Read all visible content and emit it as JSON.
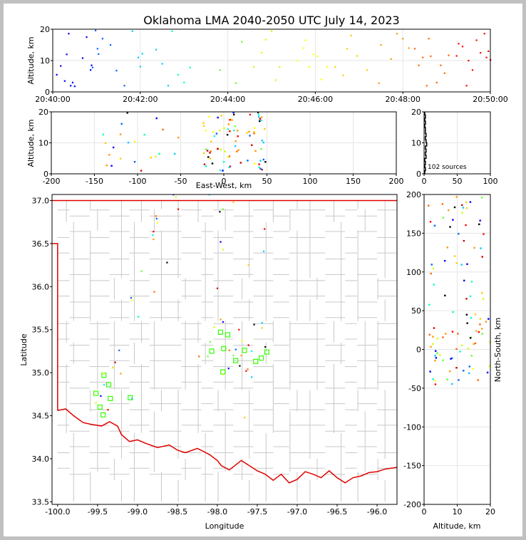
{
  "title": "Oklahoma LMA 2040-2050 UTC July 14, 2023",
  "source_count_label": "102 sources",
  "colors": {
    "grid": "#e6e6e6",
    "county": "#c8c8c8",
    "border": "#e00000",
    "station": "#33ff00"
  },
  "chart_data": [
    {
      "type": "scatter",
      "name": "time-height",
      "xlabel": "",
      "ylabel": "Altitude, km",
      "xlim": [
        "20:40:00",
        "20:50:00"
      ],
      "ylim": [
        0,
        20
      ],
      "xticks": [
        "20:40:00",
        "20:42:00",
        "20:44:00",
        "20:46:00",
        "20:48:00",
        "20:50:00"
      ],
      "yticks": [
        "0",
        "10",
        "20"
      ],
      "points_note": "t in minutes after 20:40:00, alt in km",
      "points": [
        [
          0.2,
          5.5
        ],
        [
          0.4,
          8.3
        ],
        [
          0.6,
          3.5
        ],
        [
          0.7,
          12.0
        ],
        [
          0.8,
          18.6
        ],
        [
          0.9,
          2.0
        ],
        [
          1.0,
          3.0
        ],
        [
          1.1,
          1.8
        ],
        [
          1.5,
          10.8
        ],
        [
          1.7,
          17.5
        ],
        [
          1.9,
          7.0
        ],
        [
          1.95,
          8.5
        ],
        [
          2.0,
          7.8
        ],
        [
          2.15,
          19.6
        ],
        [
          2.3,
          12.1
        ],
        [
          2.25,
          13.8
        ],
        [
          2.5,
          17.0
        ],
        [
          2.9,
          15.0
        ],
        [
          3.2,
          6.8
        ],
        [
          3.6,
          2.0
        ],
        [
          4.0,
          19.4
        ],
        [
          4.3,
          11.0
        ],
        [
          4.5,
          12.2
        ],
        [
          4.4,
          8.1
        ],
        [
          5.2,
          13.5
        ],
        [
          5.5,
          9.0
        ],
        [
          5.8,
          2.0
        ],
        [
          6.0,
          19.4
        ],
        [
          6.3,
          5.5
        ],
        [
          6.6,
          3.0
        ],
        [
          6.9,
          7.8
        ],
        [
          8.4,
          7.0
        ],
        [
          9.2,
          2.8
        ],
        [
          9.5,
          16.0
        ],
        [
          10.1,
          8.0
        ],
        [
          10.5,
          12.5
        ],
        [
          10.7,
          16.7
        ],
        [
          11.0,
          19.4
        ],
        [
          11.2,
          3.8
        ],
        [
          11.4,
          8.0
        ],
        [
          12.3,
          10.0
        ],
        [
          12.6,
          14.0
        ],
        [
          12.7,
          16.5
        ],
        [
          12.9,
          8.0
        ],
        [
          13.1,
          12.0
        ],
        [
          13.3,
          11.4
        ],
        [
          13.5,
          4.0
        ],
        [
          13.8,
          8.0
        ],
        [
          14.2,
          8.0
        ],
        [
          14.6,
          5.3
        ],
        [
          14.8,
          13.8
        ],
        [
          15.0,
          18.0
        ],
        [
          15.3,
          11.5
        ],
        [
          15.8,
          7.0
        ],
        [
          16.4,
          2.8
        ],
        [
          16.5,
          15.0
        ],
        [
          17.0,
          10.5
        ],
        [
          17.3,
          18.6
        ],
        [
          17.6,
          17.0
        ],
        [
          17.9,
          14.0
        ],
        [
          18.2,
          13.8
        ],
        [
          18.4,
          8.5
        ],
        [
          18.6,
          11.0
        ],
        [
          18.8,
          2.0
        ],
        [
          18.9,
          17.0
        ],
        [
          19.0,
          11.4
        ],
        [
          19.3,
          3.0
        ],
        [
          19.5,
          8.5
        ],
        [
          19.7,
          6.0
        ],
        [
          19.9,
          11.7
        ],
        [
          20.3,
          11.5
        ],
        [
          20.8,
          2.0
        ],
        [
          20.4,
          15.4
        ],
        [
          20.6,
          14.5
        ],
        [
          20.9,
          10.0
        ],
        [
          21.1,
          7.0
        ],
        [
          21.3,
          16.5
        ],
        [
          21.5,
          12.5
        ],
        [
          21.7,
          18.6
        ],
        [
          21.8,
          11.0
        ],
        [
          21.9,
          13.0
        ],
        [
          22.0,
          10.2
        ]
      ]
    },
    {
      "type": "scatter",
      "name": "east-west-altitude",
      "xlabel": "East-West, km",
      "ylabel": "Altitude, km",
      "xlim": [
        -200,
        200
      ],
      "ylim": [
        0,
        20
      ],
      "xticks": [
        "-200",
        "-150",
        "-100",
        "-50",
        "0",
        "50",
        "100",
        "150",
        "200"
      ],
      "yticks": [
        "0",
        "10",
        "20"
      ]
    },
    {
      "type": "histogram",
      "name": "altitude-histogram",
      "xlim": [
        0,
        100
      ],
      "ylim": [
        0,
        20
      ],
      "xticks": [
        "0",
        "50",
        "100"
      ],
      "yticks": [
        "0",
        "10",
        "20"
      ]
    },
    {
      "type": "scatter",
      "name": "plan-view",
      "xlabel": "Longitude",
      "ylabel": "Latitude",
      "xlim": [
        -100.07,
        -95.75
      ],
      "ylim": [
        33.47,
        37.07
      ],
      "xticks": [
        "-100.0",
        "-99.5",
        "-99.0",
        "-98.5",
        "-98.0",
        "-97.5",
        "-97.0",
        "-96.5",
        "-96.0"
      ],
      "yticks": [
        "33.5",
        "34.0",
        "34.5",
        "35.0",
        "35.5",
        "36.0",
        "36.5",
        "37.0"
      ],
      "stations": [
        [
          -99.42,
          34.97
        ],
        [
          -99.36,
          34.86
        ],
        [
          -99.52,
          34.76
        ],
        [
          -99.34,
          34.7
        ],
        [
          -99.47,
          34.6
        ],
        [
          -99.43,
          34.51
        ],
        [
          -99.09,
          34.71
        ],
        [
          -97.87,
          35.44
        ],
        [
          -97.96,
          35.47
        ],
        [
          -97.92,
          35.28
        ],
        [
          -98.07,
          35.25
        ],
        [
          -97.93,
          35.01
        ],
        [
          -97.77,
          35.14
        ],
        [
          -97.66,
          35.26
        ],
        [
          -97.52,
          35.13
        ],
        [
          -97.45,
          35.17
        ],
        [
          -97.38,
          35.24
        ]
      ],
      "sources": [
        [
          -98.55,
          37.07
        ],
        [
          -98.52,
          37.04
        ],
        [
          -98.49,
          36.9
        ],
        [
          -98.1,
          37.07
        ],
        [
          -97.8,
          36.98
        ],
        [
          -97.97,
          36.87
        ],
        [
          -97.93,
          36.9
        ],
        [
          -98.77,
          36.82
        ],
        [
          -98.76,
          36.79
        ],
        [
          -98.75,
          36.74
        ],
        [
          -98.8,
          36.64
        ],
        [
          -98.81,
          36.6
        ],
        [
          -98.8,
          36.55
        ],
        [
          -97.96,
          36.52
        ],
        [
          -97.93,
          36.43
        ],
        [
          -97.41,
          36.67
        ],
        [
          -97.42,
          36.41
        ],
        [
          -97.61,
          36.25
        ],
        [
          -98.63,
          36.28
        ],
        [
          -98.95,
          36.18
        ],
        [
          -98.79,
          35.94
        ],
        [
          -99.08,
          35.87
        ],
        [
          -99.07,
          35.84
        ],
        [
          -98.0,
          35.98
        ],
        [
          -98.99,
          35.65
        ],
        [
          -97.96,
          35.62
        ],
        [
          -97.93,
          35.59
        ],
        [
          -98.04,
          35.53
        ],
        [
          -97.73,
          35.5
        ],
        [
          -97.44,
          35.58
        ],
        [
          -97.44,
          35.52
        ],
        [
          -97.54,
          35.56
        ],
        [
          -98.09,
          35.36
        ],
        [
          -97.85,
          35.26
        ],
        [
          -97.77,
          35.27
        ],
        [
          -97.69,
          35.37
        ],
        [
          -97.61,
          35.32
        ],
        [
          -97.57,
          35.25
        ],
        [
          -97.7,
          35.2
        ],
        [
          -97.86,
          35.05
        ],
        [
          -97.93,
          34.98
        ],
        [
          -97.64,
          35.02
        ],
        [
          -97.57,
          34.95
        ],
        [
          -97.66,
          34.48
        ],
        [
          -97.4,
          35.3
        ],
        [
          -98.12,
          35.19
        ],
        [
          -98.23,
          35.19
        ],
        [
          -99.23,
          35.26
        ],
        [
          -99.43,
          34.99
        ],
        [
          -99.28,
          35.12
        ],
        [
          -99.42,
          34.86
        ],
        [
          -99.21,
          34.99
        ],
        [
          -99.46,
          34.73
        ],
        [
          -99.52,
          34.65
        ],
        [
          -99.37,
          34.57
        ],
        [
          -99.07,
          34.7
        ],
        [
          -99.31,
          35.06
        ],
        [
          -97.72,
          35.08
        ],
        [
          -97.8,
          35.2
        ],
        [
          -97.62,
          35.04
        ]
      ]
    },
    {
      "type": "scatter",
      "name": "altitude-north-south",
      "xlabel": "Altitude, km",
      "ylabel": "North-South, km",
      "xlim": [
        0,
        20
      ],
      "ylim": [
        -200,
        200
      ],
      "xticks": [
        "0",
        "10",
        "20"
      ],
      "yticks": [
        "-200",
        "-150",
        "-100",
        "-50",
        "0",
        "50",
        "100",
        "150",
        "200"
      ]
    }
  ]
}
